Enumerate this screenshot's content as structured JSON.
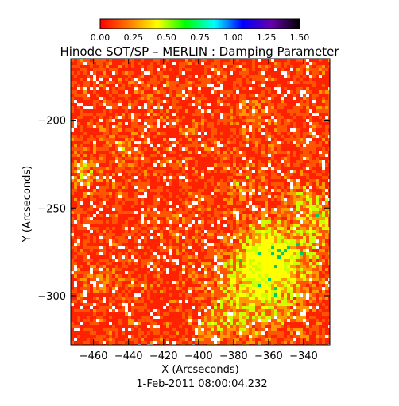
{
  "chart_data": {
    "type": "heatmap",
    "title": "Hinode SOT/SP – MERLIN : Damping Parameter",
    "xlabel": "X (Arcseconds)",
    "ylabel": "Y (Arcseconds)",
    "date_label": "1-Feb-2011 08:00:04.232",
    "xlim": [
      -473,
      -325
    ],
    "ylim": [
      -328,
      -165
    ],
    "x_ticks": [
      -460,
      -440,
      -420,
      -400,
      -380,
      -360,
      -340
    ],
    "y_ticks": [
      -200,
      -250,
      -300
    ],
    "colorbar": {
      "range": [
        0.0,
        1.5
      ],
      "ticks": [
        "0.00",
        "0.25",
        "0.50",
        "0.75",
        "1.00",
        "1.25",
        "1.50"
      ],
      "stops": [
        "#ff0000",
        "#ff7800",
        "#ffff00",
        "#00ff00",
        "#00ffff",
        "#0000ff",
        "#6600aa",
        "#000000"
      ]
    },
    "grid": false
  }
}
